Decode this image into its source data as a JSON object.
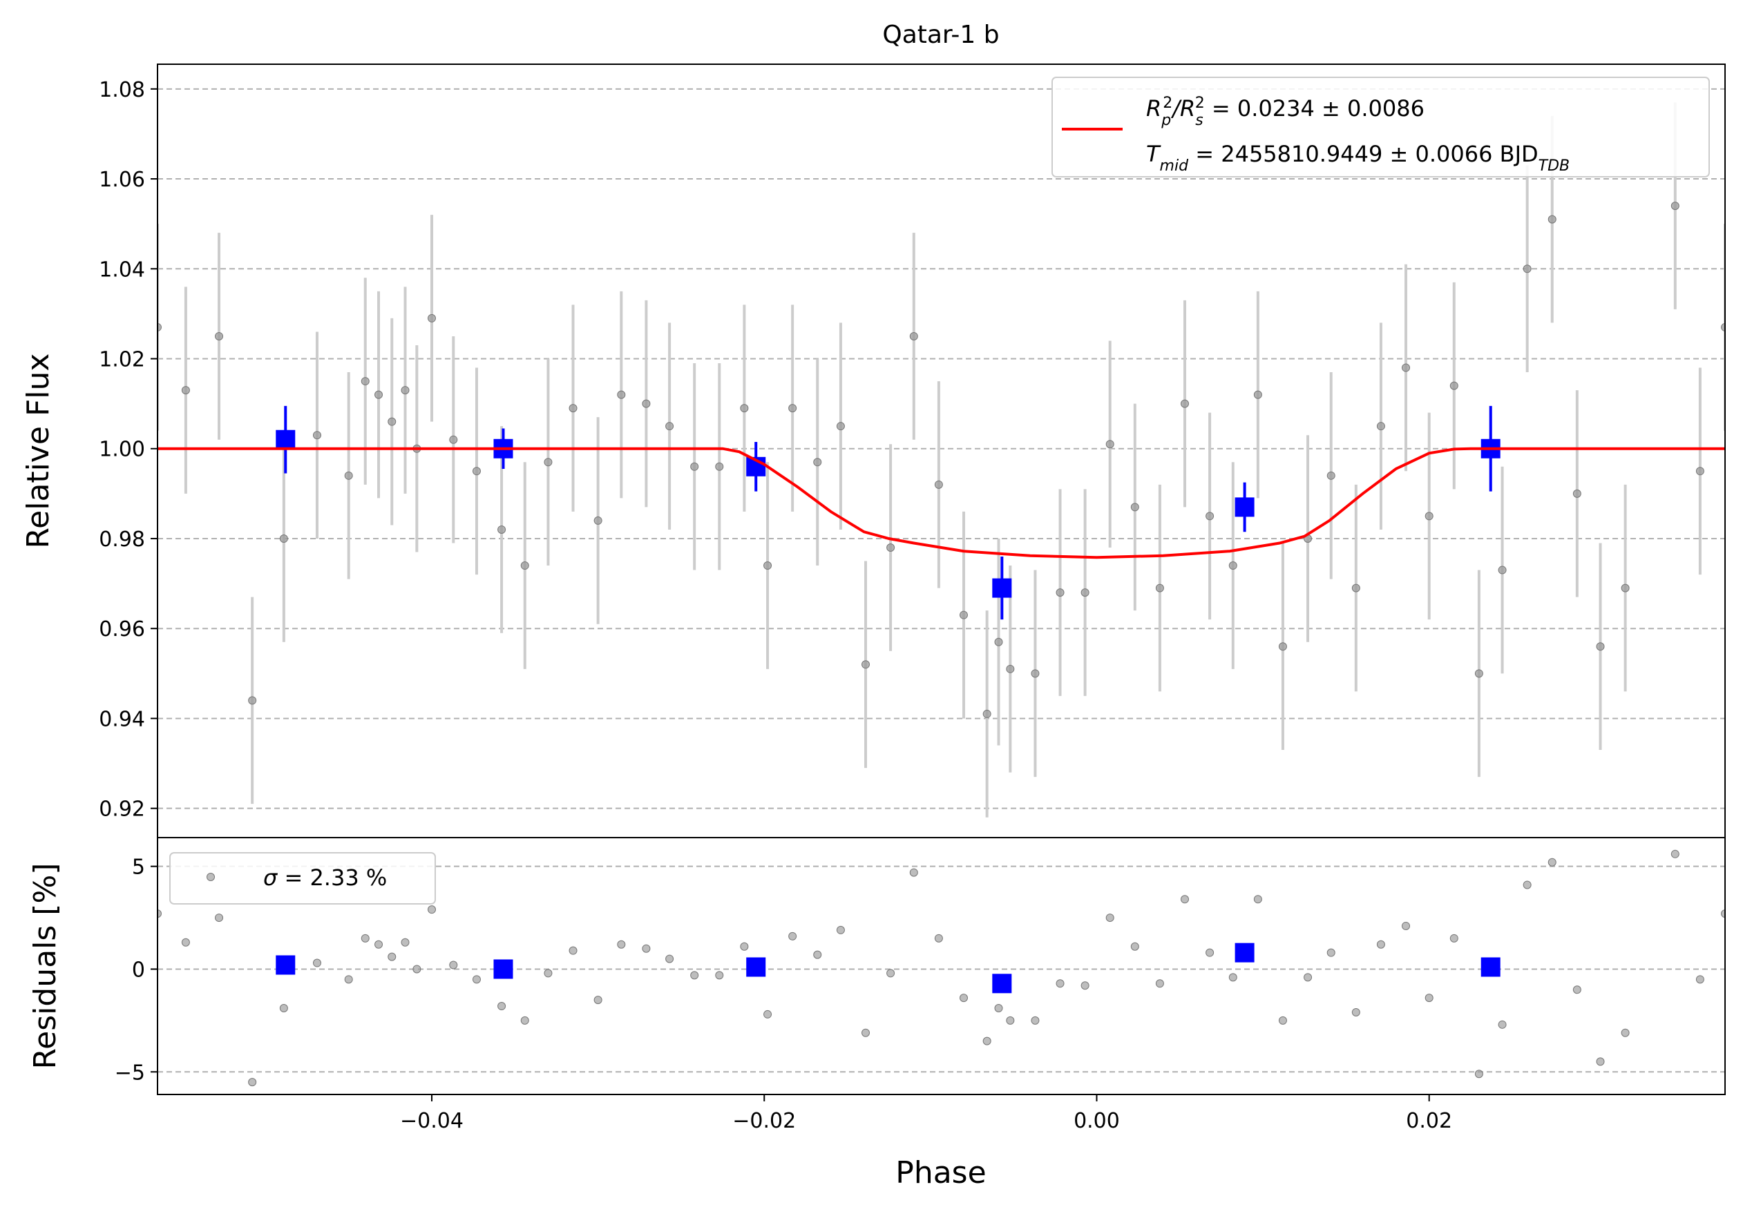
{
  "chart_data": [
    {
      "type": "scatter",
      "title": "Qatar-1 b",
      "xlabel": "",
      "ylabel": "Relative Flux",
      "xlim": [
        -0.0565,
        0.0378
      ],
      "ylim": [
        0.9135,
        1.0855
      ],
      "yticks": [
        "0.92",
        "0.94",
        "0.96",
        "0.98",
        "1.00",
        "1.02",
        "1.04",
        "1.06",
        "1.08"
      ],
      "grid": "horizontal-dashed",
      "legend": {
        "placement": "top-right",
        "line1": {
          "pre": "R",
          "sub1": "p",
          "sup1": "2",
          "mid": "/R",
          "sub2": "s",
          "sup2": "2",
          "post": " = 0.0234 ± 0.0086"
        },
        "line2": {
          "pre": "T",
          "sub": "mid",
          "post": " = 2455810.9449 ± 0.0066 BJD",
          "sub2": "TDB"
        }
      },
      "colors": {
        "raw": "#999999",
        "err": "#cccccc",
        "binned": "#0000ff",
        "model": "#ff0000"
      },
      "raw": {
        "x": [
          -0.0565,
          -0.0548,
          -0.0528,
          -0.0508,
          -0.0489,
          -0.0469,
          -0.045,
          -0.044,
          -0.0432,
          -0.0424,
          -0.0416,
          -0.0409,
          -0.04,
          -0.0387,
          -0.0373,
          -0.0358,
          -0.0344,
          -0.033,
          -0.0315,
          -0.03,
          -0.0286,
          -0.0271,
          -0.0257,
          -0.0242,
          -0.0227,
          -0.0212,
          -0.0198,
          -0.0183,
          -0.0168,
          -0.0154,
          -0.0139,
          -0.0124,
          -0.011,
          -0.0095,
          -0.008,
          -0.0066,
          -0.0059,
          -0.0052,
          -0.0037,
          -0.0022,
          -0.0007,
          0.0008,
          0.0023,
          0.0038,
          0.0053,
          0.0068,
          0.0082,
          0.0097,
          0.0112,
          0.0127,
          0.0141,
          0.0156,
          0.0171,
          0.0186,
          0.02,
          0.0215,
          0.023,
          0.0244,
          0.0259,
          0.0274,
          0.0289,
          0.0303,
          0.0318,
          0.0348,
          0.0363,
          0.0378
        ],
        "y": [
          1.027,
          1.013,
          1.025,
          0.944,
          0.98,
          1.003,
          0.994,
          1.015,
          1.012,
          1.006,
          1.013,
          1.0,
          1.029,
          1.002,
          0.995,
          0.982,
          0.974,
          0.997,
          1.009,
          0.984,
          1.012,
          1.01,
          1.005,
          0.996,
          0.996,
          1.009,
          0.974,
          1.009,
          0.997,
          1.005,
          0.952,
          0.978,
          1.025,
          0.992,
          0.963,
          0.941,
          0.957,
          0.951,
          0.95,
          0.968,
          0.968,
          1.001,
          0.987,
          0.969,
          1.01,
          0.985,
          0.974,
          1.012,
          0.956,
          0.98,
          0.994,
          0.969,
          1.005,
          1.018,
          0.985,
          1.014,
          0.95,
          0.973,
          1.04,
          1.051,
          0.99,
          0.956,
          0.969,
          1.054,
          0.995,
          1.027
        ],
        "err": [
          0.023,
          0.023,
          0.023,
          0.023,
          0.023,
          0.023,
          0.023,
          0.023,
          0.023,
          0.023,
          0.023,
          0.023,
          0.023,
          0.023,
          0.023,
          0.023,
          0.023,
          0.023,
          0.023,
          0.023,
          0.023,
          0.023,
          0.023,
          0.023,
          0.023,
          0.023,
          0.023,
          0.023,
          0.023,
          0.023,
          0.023,
          0.023,
          0.023,
          0.023,
          0.023,
          0.023,
          0.023,
          0.023,
          0.023,
          0.023,
          0.023,
          0.023,
          0.023,
          0.023,
          0.023,
          0.023,
          0.023,
          0.023,
          0.023,
          0.023,
          0.023,
          0.023,
          0.023,
          0.023,
          0.023,
          0.023,
          0.023,
          0.023,
          0.023,
          0.023,
          0.023,
          0.023,
          0.023,
          0.023,
          0.023,
          0.023
        ]
      },
      "binned": {
        "x": [
          -0.0488,
          -0.0357,
          -0.0205,
          -0.0057,
          0.0089,
          0.0237
        ],
        "y": [
          1.002,
          1.0,
          0.996,
          0.969,
          0.987,
          1.0
        ],
        "err": [
          0.0075,
          0.0045,
          0.0055,
          0.007,
          0.0055,
          0.0095
        ]
      },
      "model": {
        "x": [
          -0.0565,
          -0.0225,
          -0.0215,
          -0.02,
          -0.018,
          -0.016,
          -0.014,
          -0.0125,
          -0.011,
          -0.008,
          -0.004,
          0.0,
          0.004,
          0.008,
          0.011,
          0.0125,
          0.014,
          0.016,
          0.018,
          0.02,
          0.0215,
          0.0225,
          0.0378
        ],
        "y": [
          1.0,
          1.0,
          0.9993,
          0.9965,
          0.9915,
          0.986,
          0.9815,
          0.98,
          0.979,
          0.9772,
          0.9762,
          0.9758,
          0.9762,
          0.9772,
          0.979,
          0.9805,
          0.984,
          0.99,
          0.9955,
          0.999,
          0.9999,
          1.0,
          1.0
        ]
      }
    },
    {
      "type": "scatter",
      "title": "",
      "xlabel": "Phase",
      "ylabel": "Residuals [%]",
      "xlim": [
        -0.0565,
        0.0378
      ],
      "ylim": [
        -6.1,
        6.4
      ],
      "xticks": [
        "−0.04",
        "−0.02",
        "0.00",
        "0.02"
      ],
      "xtick_values": [
        -0.04,
        -0.02,
        0.0,
        0.02
      ],
      "yticks": [
        "−5",
        "0",
        "5"
      ],
      "ytick_values": [
        -5,
        0,
        5
      ],
      "grid": "horizontal-dashed",
      "legend": {
        "placement": "top-left",
        "sigma_symbol": "σ",
        "text": " = 2.33 %"
      },
      "residuals": [
        2.7,
        1.3,
        2.5,
        -5.5,
        -1.9,
        0.3,
        -0.5,
        1.5,
        1.2,
        0.6,
        1.3,
        0.0,
        2.9,
        0.2,
        -0.5,
        -1.8,
        -2.5,
        -0.2,
        0.9,
        -1.5,
        1.2,
        1.0,
        0.5,
        -0.3,
        -0.3,
        1.1,
        -2.2,
        1.6,
        0.7,
        1.9,
        -3.1,
        -0.2,
        4.7,
        1.5,
        -1.4,
        -3.5,
        -1.9,
        -2.5,
        -2.5,
        -0.7,
        -0.8,
        2.5,
        1.1,
        -0.7,
        3.4,
        0.8,
        -0.4,
        3.4,
        -2.5,
        -0.4,
        0.8,
        -2.1,
        1.2,
        2.1,
        -1.4,
        1.5,
        -5.1,
        -2.7,
        4.1,
        5.2,
        -1.0,
        -4.5,
        -3.1,
        5.6,
        -0.5,
        2.7
      ],
      "binned_residuals": [
        0.2,
        0.0,
        0.1,
        -0.7,
        0.8,
        0.1
      ]
    }
  ]
}
